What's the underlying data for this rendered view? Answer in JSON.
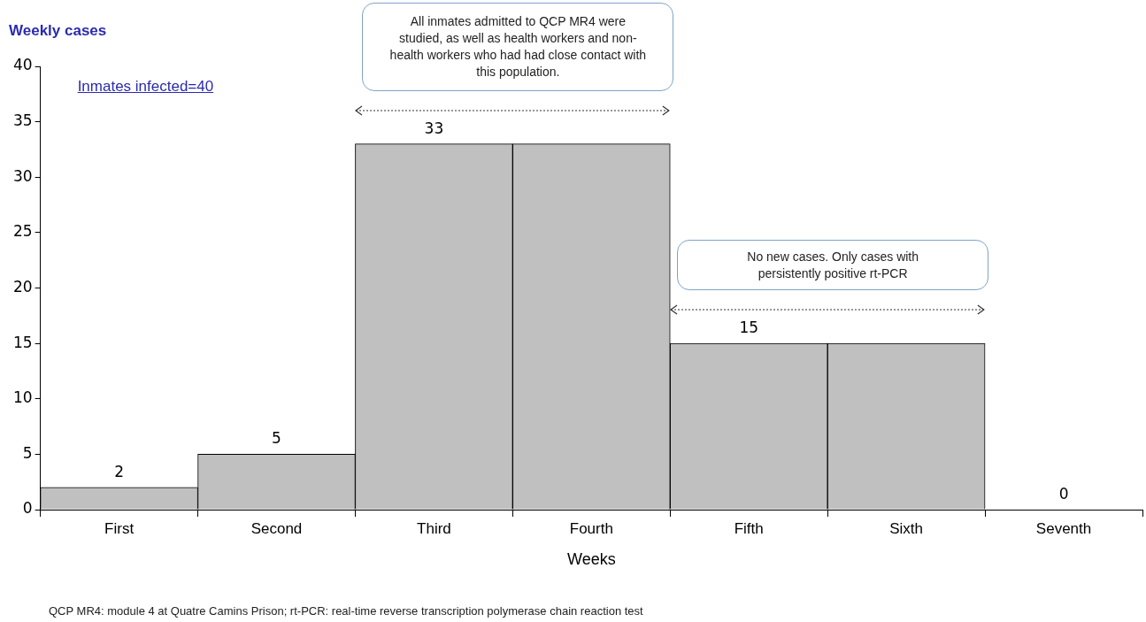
{
  "chart_data": {
    "type": "bar",
    "xlabel": "Weeks",
    "ylabel": "Weekly cases",
    "categories": [
      "First",
      "Second",
      "Third",
      "Fourth",
      "Fifth",
      "Sixth",
      "Seventh"
    ],
    "values": [
      2,
      5,
      33,
      33,
      15,
      15,
      0
    ],
    "color": "#c0c0c0",
    "value_labels": [
      "2",
      "5",
      "33",
      null,
      "15",
      null,
      "0"
    ],
    "ylim": [
      0,
      40
    ],
    "yticks": [
      0,
      5,
      10,
      15,
      20,
      25,
      30,
      35,
      40
    ],
    "grid": false,
    "legend": false,
    "annotations": [
      "Inmates infected=40",
      "All inmates admitted to QCP MR4 were studied, as well as health workers and non-health workers who had had close contact with this population.",
      "No new cases. Only cases with persistently positive rt-PCR",
      "QCP MR4: module 4 at Quatre Camins Prison; rt-PCR: real-time reverse transcription polymerase chain reaction test"
    ]
  }
}
